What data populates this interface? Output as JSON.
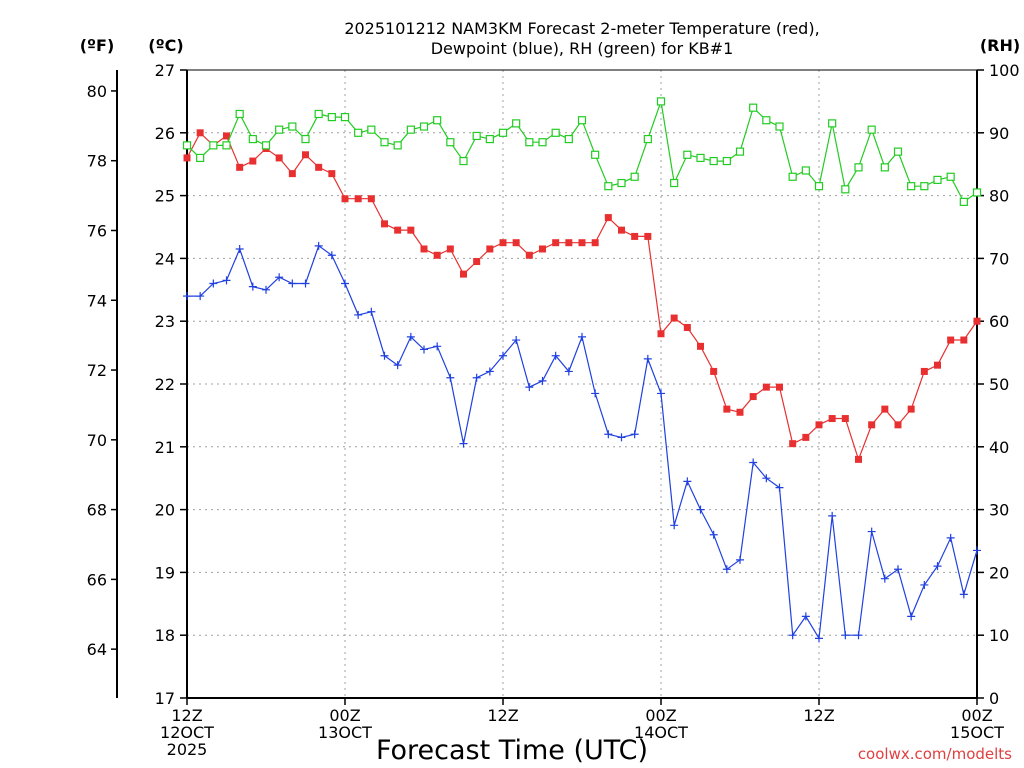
{
  "chart_data": {
    "type": "line",
    "title_line1": "2025101212 NAM3KM Forecast 2-meter Temperature (red),",
    "title_line2": "Dewpoint (blue), RH (green) for KB#1",
    "left_outer_unit": "(ºF)",
    "left_inner_unit": "(ºC)",
    "right_unit": "(RH)",
    "xlabel": "Forecast Time (UTC)",
    "credit": "coolwx.com/modelts",
    "x_range_hours": [
      0,
      60
    ],
    "celsius_range": [
      17,
      27
    ],
    "rh_range": [
      0,
      100
    ],
    "celsius_ticks": [
      "17",
      "18",
      "19",
      "20",
      "21",
      "22",
      "23",
      "24",
      "25",
      "26",
      "27"
    ],
    "fahrenheit_ticks": [
      "64",
      "66",
      "68",
      "70",
      "72",
      "74",
      "76",
      "78",
      "80"
    ],
    "rh_ticks": [
      "0",
      "10",
      "20",
      "30",
      "40",
      "50",
      "60",
      "70",
      "80",
      "90",
      "100"
    ],
    "x_ticks": [
      {
        "hour": 0,
        "line1": "12Z",
        "line2": "12OCT",
        "line3": "2025"
      },
      {
        "hour": 12,
        "line1": "00Z",
        "line2": "13OCT",
        "line3": ""
      },
      {
        "hour": 24,
        "line1": "12Z",
        "line2": "",
        "line3": ""
      },
      {
        "hour": 36,
        "line1": "00Z",
        "line2": "14OCT",
        "line3": ""
      },
      {
        "hour": 48,
        "line1": "12Z",
        "line2": "",
        "line3": ""
      },
      {
        "hour": 60,
        "line1": "00Z",
        "line2": "15OCT",
        "line3": ""
      }
    ],
    "series": [
      {
        "name": "Temperature (°C)",
        "color": "#e83030",
        "marker": "filled-square",
        "values": [
          25.6,
          26.0,
          25.8,
          25.95,
          25.45,
          25.55,
          25.75,
          25.6,
          25.35,
          25.65,
          25.45,
          25.35,
          24.95,
          24.95,
          24.95,
          24.55,
          24.45,
          24.45,
          24.15,
          24.05,
          24.15,
          23.75,
          23.95,
          24.15,
          24.25,
          24.25,
          24.05,
          24.15,
          24.25,
          24.25,
          24.25,
          24.25,
          24.65,
          24.45,
          24.35,
          24.35,
          22.8,
          23.05,
          22.9,
          22.6,
          22.2,
          21.6,
          21.55,
          21.8,
          21.95,
          21.95,
          21.05,
          21.15,
          21.35,
          21.45,
          21.45,
          20.8,
          21.35,
          21.6,
          21.35,
          21.6,
          22.2,
          22.3,
          22.7,
          22.7,
          23.0
        ]
      },
      {
        "name": "Dewpoint (°C)",
        "color": "#2040e0",
        "marker": "plus",
        "values": [
          23.4,
          23.4,
          23.6,
          23.65,
          24.15,
          23.55,
          23.5,
          23.7,
          23.6,
          23.6,
          24.2,
          24.05,
          23.6,
          23.1,
          23.15,
          22.45,
          22.3,
          22.75,
          22.55,
          22.6,
          22.1,
          21.05,
          22.1,
          22.2,
          22.45,
          22.7,
          21.95,
          22.05,
          22.45,
          22.2,
          22.75,
          21.85,
          21.2,
          21.15,
          21.2,
          22.4,
          21.85,
          19.75,
          20.45,
          20.0,
          19.6,
          19.05,
          19.2,
          20.75,
          20.5,
          20.35,
          18.0,
          18.3,
          17.95,
          19.9,
          18.0,
          18.0,
          19.65,
          18.9,
          19.05,
          18.3,
          18.8,
          19.1,
          19.55,
          18.65,
          19.35
        ]
      },
      {
        "name": "Relative Humidity (%)",
        "color": "#22cc22",
        "marker": "open-square",
        "values": [
          88,
          86,
          88,
          88,
          93,
          89,
          88,
          90.5,
          91,
          89,
          93,
          92.5,
          92.5,
          90,
          90.5,
          88.5,
          88,
          90.5,
          91,
          92,
          88.5,
          85.5,
          89.5,
          89,
          90,
          91.5,
          88.5,
          88.5,
          90,
          89,
          92,
          86.5,
          81.5,
          82,
          83,
          89,
          95,
          82,
          86.5,
          86,
          85.5,
          85.5,
          87,
          94,
          92,
          91,
          83,
          84,
          81.5,
          91.5,
          81,
          84.5,
          90.5,
          84.5,
          87,
          81.5,
          81.5,
          82.5,
          83,
          79,
          80.5
        ]
      }
    ]
  }
}
